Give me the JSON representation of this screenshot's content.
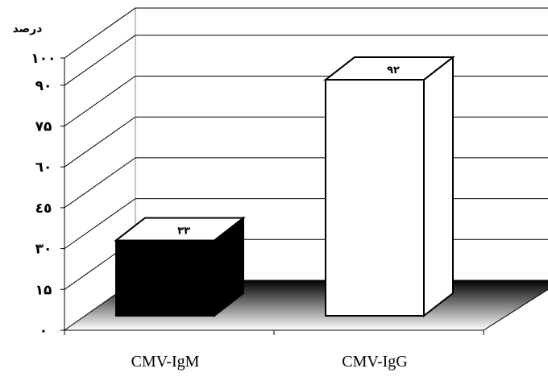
{
  "chart_data": {
    "type": "bar",
    "categories": [
      "CMV-IgM",
      "CMV-IgG"
    ],
    "values": [
      33,
      92
    ],
    "data_labels": [
      "۳۳",
      "۹۲"
    ],
    "ylabel": "درصد",
    "yticks": [
      {
        "value": 0,
        "label": "۰"
      },
      {
        "value": 15,
        "label": "۱۵"
      },
      {
        "value": 30,
        "label": "۳۰"
      },
      {
        "value": 45,
        "label": "٤٥"
      },
      {
        "value": 60,
        "label": "٦۰"
      },
      {
        "value": 75,
        "label": "۷۵"
      },
      {
        "value": 90,
        "label": "۹۰"
      },
      {
        "value": 100,
        "label": "۱۰۰"
      }
    ],
    "ylim": [
      0,
      100
    ],
    "grid": true,
    "three_d": true,
    "colors": {
      "series_1": "#000000",
      "series_2": "#ffffff",
      "floor_dark": "#000000",
      "floor_light": "#ffffff"
    }
  }
}
